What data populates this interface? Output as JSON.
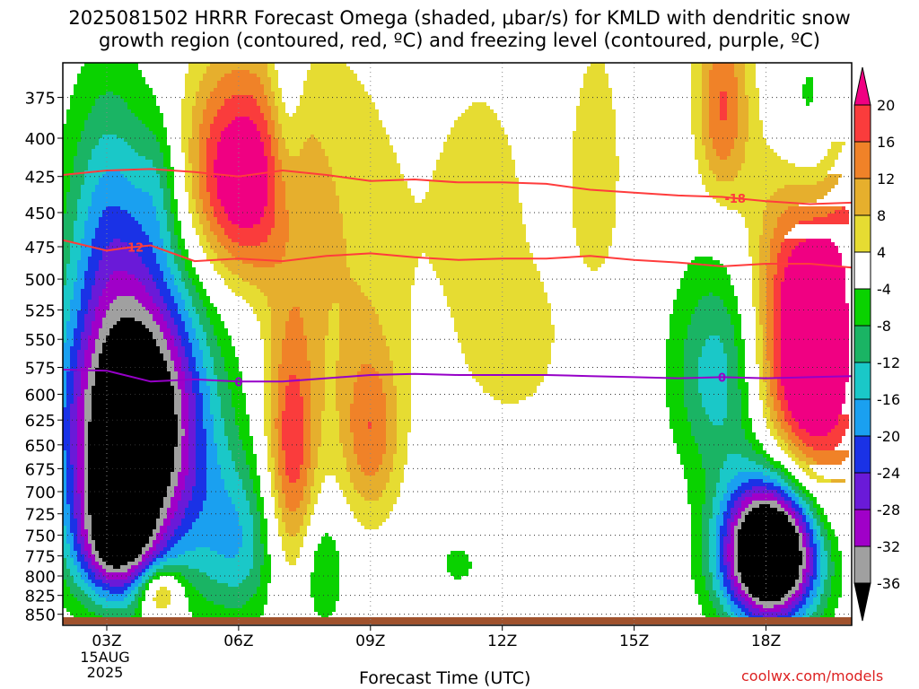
{
  "title_line1": "2025081502 HRRR Forecast Omega (shaded, μbar/s) for KMLD with dendritic snow",
  "title_line2": "growth region (contoured, red, ºC) and freezing level (contoured, purple, ºC)",
  "credit": "coolwx.com/models",
  "colors": {
    "neg_36": "#000000",
    "neg_32": "#a0a0a0",
    "neg_28": "#a000c8",
    "neg_24": "#6a1ad8",
    "neg_20": "#1a32e6",
    "neg_16": "#1aa0f0",
    "neg_12": "#1ac8c8",
    "neg_8": "#1ab464",
    "neg_4": "#0ad200",
    "zero": "#ffffff",
    "pos_4": "#e6dc32",
    "pos_8": "#e6af2d",
    "pos_12": "#f08228",
    "pos_16": "#fa3c3c",
    "pos_20": "#f00082",
    "dgz_line": "#ff3c3c",
    "freezing_line": "#9600c8",
    "ground": "#a0522d"
  },
  "chart_data": {
    "type": "heatmap",
    "xlabel": "Forecast Time (UTC)",
    "x_ticks": [
      {
        "hour": 3,
        "label": "03Z",
        "sub1": "15AUG",
        "sub2": "2025"
      },
      {
        "hour": 6,
        "label": "06Z"
      },
      {
        "hour": 9,
        "label": "09Z"
      },
      {
        "hour": 12,
        "label": "12Z"
      },
      {
        "hour": 15,
        "label": "15Z"
      },
      {
        "hour": 18,
        "label": "18Z"
      }
    ],
    "xlim": [
      2,
      19.95
    ],
    "ylabel": "",
    "y_ticks": [
      375,
      400,
      425,
      450,
      475,
      500,
      525,
      550,
      575,
      600,
      625,
      650,
      675,
      700,
      725,
      750,
      775,
      800,
      825,
      850
    ],
    "ylim_hPa": [
      355,
      865
    ],
    "y_scale": "log-pressure",
    "colorbar": {
      "labels": [
        "20",
        "16",
        "12",
        "8",
        "4",
        "-4",
        "-8",
        "-12",
        "-16",
        "-20",
        "-24",
        "-28",
        "-32",
        "-36"
      ],
      "bin_colors": [
        "pos_20",
        "pos_16",
        "pos_12",
        "pos_8",
        "pos_4",
        "zero",
        "neg_4",
        "neg_8",
        "neg_12",
        "neg_16",
        "neg_20",
        "neg_24",
        "neg_28",
        "neg_32",
        "neg_36"
      ]
    },
    "omega_features": [
      {
        "name": "strong ascent core",
        "hour": 3.6,
        "p": 630,
        "rh": 1.6,
        "rp": 150,
        "peak": -52
      },
      {
        "name": "ascent low",
        "hour": 3.2,
        "p": 760,
        "rh": 0.9,
        "rp": 70,
        "peak": -24
      },
      {
        "name": "ascent upper",
        "hour": 3.0,
        "p": 440,
        "rh": 0.9,
        "rp": 90,
        "peak": -10
      },
      {
        "name": "ascent 04Z",
        "hour": 4.2,
        "p": 430,
        "rh": 0.5,
        "rp": 50,
        "peak": -7
      },
      {
        "name": "ascent 06Z",
        "hour": 6.0,
        "p": 760,
        "rh": 1.0,
        "rp": 100,
        "peak": -14
      },
      {
        "name": "ascent 07Z",
        "hour": 7.1,
        "p": 380,
        "rh": 0.4,
        "rp": 90,
        "peak": -8
      },
      {
        "name": "ascent 08Z",
        "hour": 7.9,
        "p": 790,
        "rh": 0.5,
        "rp": 80,
        "peak": -9
      },
      {
        "name": "ascent 11Z",
        "hour": 11.0,
        "p": 785,
        "rh": 0.45,
        "rp": 28,
        "peak": -6
      },
      {
        "name": "ascent 17Z",
        "hour": 17.0,
        "p": 580,
        "rh": 1.1,
        "rp": 100,
        "peak": -16
      },
      {
        "name": "strong ascent 18Z",
        "hour": 18.1,
        "p": 770,
        "rh": 1.1,
        "rp": 90,
        "peak": -60
      },
      {
        "name": "ascent 19Z",
        "hour": 19.0,
        "p": 390,
        "rh": 0.8,
        "rp": 60,
        "peak": -12
      },
      {
        "name": "sinking 06Z",
        "hour": 6.0,
        "p": 425,
        "rh": 1.3,
        "rp": 75,
        "peak": 26
      },
      {
        "name": "sinking 04Z",
        "hour": 4.2,
        "p": 820,
        "rh": 0.5,
        "rp": 35,
        "peak": 18
      },
      {
        "name": "sinking 07Z",
        "hour": 7.2,
        "p": 660,
        "rh": 0.6,
        "rp": 140,
        "peak": 19
      },
      {
        "name": "sinking 09Z",
        "hour": 9.0,
        "p": 640,
        "rh": 0.7,
        "rp": 90,
        "peak": 14
      },
      {
        "name": "sinking 08Z",
        "hour": 8.3,
        "p": 480,
        "rh": 1.4,
        "rp": 150,
        "peak": 7
      },
      {
        "name": "sinking 11Z",
        "hour": 11.5,
        "p": 450,
        "rh": 1.8,
        "rp": 150,
        "peak": 5
      },
      {
        "name": "sinking 12Z",
        "hour": 12.3,
        "p": 560,
        "rh": 1.0,
        "rp": 60,
        "peak": 5
      },
      {
        "name": "sinking 14Z",
        "hour": 14.2,
        "p": 420,
        "rh": 0.8,
        "rp": 120,
        "peak": 5
      },
      {
        "name": "sinking 17Z",
        "hour": 17.0,
        "p": 380,
        "rh": 0.6,
        "rp": 60,
        "peak": 16
      },
      {
        "name": "sinking 19Z",
        "hour": 19.0,
        "p": 560,
        "rh": 1.3,
        "rp": 150,
        "peak": 32
      },
      {
        "name": "sinking 20Z",
        "hour": 19.9,
        "p": 430,
        "rh": 0.5,
        "rp": 60,
        "peak": 6
      }
    ],
    "contours": [
      {
        "kind": "dendritic",
        "value": -18,
        "label": "-18",
        "label_hour": 17.3,
        "points": [
          [
            2,
            424
          ],
          [
            3,
            421
          ],
          [
            4,
            420
          ],
          [
            5,
            422
          ],
          [
            6,
            425
          ],
          [
            7,
            421
          ],
          [
            8,
            424
          ],
          [
            9,
            428
          ],
          [
            10,
            427
          ],
          [
            11,
            429
          ],
          [
            12,
            429
          ],
          [
            13,
            430
          ],
          [
            14,
            434
          ],
          [
            15,
            436
          ],
          [
            16,
            438
          ],
          [
            17,
            439
          ],
          [
            18,
            442
          ],
          [
            19,
            444
          ],
          [
            19.95,
            443
          ]
        ]
      },
      {
        "kind": "dendritic",
        "value": -12,
        "label": "-12",
        "label_hour": 3.6,
        "points": [
          [
            2,
            470
          ],
          [
            3,
            478
          ],
          [
            3.4,
            476
          ],
          [
            4,
            474
          ],
          [
            5,
            486
          ],
          [
            6,
            484
          ],
          [
            7,
            486
          ],
          [
            8,
            482
          ],
          [
            9,
            480
          ],
          [
            10,
            483
          ],
          [
            11,
            485
          ],
          [
            12,
            484
          ],
          [
            13,
            484
          ],
          [
            14,
            482
          ],
          [
            15,
            485
          ],
          [
            16,
            487
          ],
          [
            17,
            490
          ],
          [
            18,
            488
          ],
          [
            19,
            488
          ],
          [
            19.95,
            491
          ]
        ]
      },
      {
        "kind": "freezing",
        "value": 0,
        "label": "0",
        "label_hour": 6.0,
        "points": [
          [
            2,
            577
          ],
          [
            3,
            578
          ],
          [
            4,
            588
          ],
          [
            5,
            586
          ],
          [
            6,
            588
          ],
          [
            7,
            588
          ],
          [
            8,
            585
          ],
          [
            9,
            582
          ],
          [
            10,
            581
          ],
          [
            11,
            582
          ],
          [
            12,
            582
          ],
          [
            13,
            582
          ],
          [
            14,
            583
          ],
          [
            15,
            584
          ],
          [
            16,
            585
          ],
          [
            17,
            584
          ],
          [
            18,
            585
          ],
          [
            19,
            584
          ],
          [
            19.95,
            583
          ]
        ]
      },
      {
        "kind": "freezing",
        "value": 0,
        "label": "0",
        "label_hour": 17.0,
        "points": []
      }
    ]
  }
}
